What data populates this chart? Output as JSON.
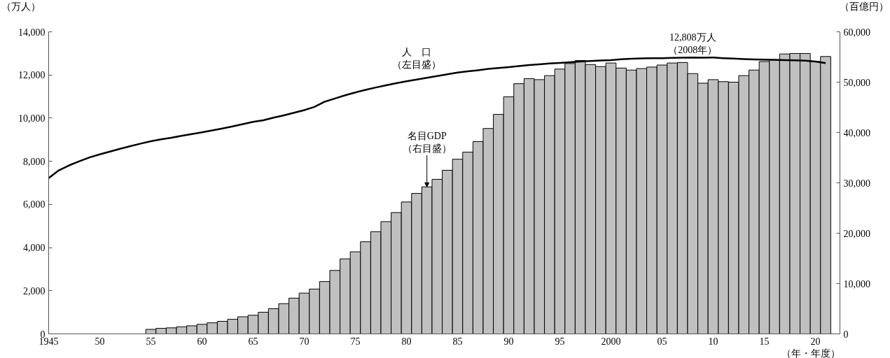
{
  "chart_data": {
    "type": "bar",
    "xlabel": "（年・年度）",
    "ylabel": "（万人）",
    "y2label": "（百億円）",
    "xlim": [
      1945,
      2022.4
    ],
    "xticks": [
      1945,
      {
        "value": 1950,
        "label": "50"
      },
      {
        "value": 1955,
        "label": "55"
      },
      {
        "value": 1960,
        "label": "60"
      },
      {
        "value": 1965,
        "label": "65"
      },
      {
        "value": 1970,
        "label": "70"
      },
      {
        "value": 1975,
        "label": "75"
      },
      {
        "value": 1980,
        "label": "80"
      },
      {
        "value": 1985,
        "label": "85"
      },
      {
        "value": 1990,
        "label": "90"
      },
      {
        "value": 1995,
        "label": "95"
      },
      2000,
      {
        "value": 2005,
        "label": "05"
      },
      {
        "value": 2010,
        "label": "10"
      },
      {
        "value": 2015,
        "label": "15"
      },
      {
        "value": 2020,
        "label": "20"
      }
    ],
    "ylim": [
      0,
      14000
    ],
    "yticks": [
      0,
      {
        "value": 2000,
        "label": "2,000"
      },
      {
        "value": 4000,
        "label": "4,000"
      },
      {
        "value": 6000,
        "label": "6,000"
      },
      {
        "value": 8000,
        "label": "8,000"
      },
      {
        "value": 10000,
        "label": "10,000"
      },
      {
        "value": 12000,
        "label": "12,000"
      },
      {
        "value": 14000,
        "label": "14,000"
      }
    ],
    "y2lim": [
      0,
      60000
    ],
    "y2ticks": [
      0,
      {
        "value": 10000,
        "label": "10,000"
      },
      {
        "value": 20000,
        "label": "20,000"
      },
      {
        "value": 30000,
        "label": "30,000"
      },
      {
        "value": 40000,
        "label": "40,000"
      },
      {
        "value": 50000,
        "label": "50,000"
      },
      {
        "value": 60000,
        "label": "60,000"
      }
    ],
    "grid": false,
    "series": [
      {
        "axis": "y2",
        "name": "名目GDP（右目盛）",
        "color": "#c0c0c0",
        "x": [
          1955,
          1956,
          1957,
          1958,
          1959,
          1960,
          1961,
          1962,
          1963,
          1964,
          1965,
          1966,
          1967,
          1968,
          1969,
          1970,
          1971,
          1972,
          1973,
          1974,
          1975,
          1976,
          1977,
          1978,
          1979,
          1980,
          1981,
          1982,
          1983,
          1984,
          1985,
          1986,
          1987,
          1988,
          1989,
          1990,
          1991,
          1992,
          1993,
          1994,
          1995,
          1996,
          1997,
          1998,
          1999,
          2000,
          2001,
          2002,
          2003,
          2004,
          2005,
          2006,
          2007,
          2008,
          2009,
          2010,
          2011,
          2012,
          2013,
          2014,
          2015,
          2016,
          2017,
          2018,
          2019,
          2020,
          2021
        ],
        "values": [
          900,
          1100,
          1200,
          1400,
          1600,
          1900,
          2200,
          2500,
          2900,
          3400,
          3700,
          4300,
          5000,
          6000,
          7100,
          8100,
          8900,
          10400,
          12600,
          14900,
          16300,
          18300,
          20300,
          22300,
          24100,
          26200,
          27900,
          29200,
          30700,
          32500,
          34700,
          36100,
          38200,
          40800,
          43600,
          47100,
          49700,
          50700,
          50500,
          51300,
          52600,
          53700,
          54300,
          53500,
          53100,
          53800,
          52800,
          52400,
          52700,
          53000,
          53400,
          53800,
          53900,
          51700,
          49800,
          50500,
          50100,
          50000,
          51300,
          52400,
          54100,
          54400,
          55600,
          55700,
          55700,
          54100,
          55100
        ]
      },
      {
        "type": "line",
        "axis": "y",
        "name": "人　口（左目盛）",
        "color": "#000000",
        "x": [
          1945,
          1946,
          1947,
          1948,
          1949,
          1950,
          1951,
          1952,
          1953,
          1954,
          1955,
          1956,
          1957,
          1958,
          1959,
          1960,
          1961,
          1962,
          1963,
          1964,
          1965,
          1966,
          1967,
          1968,
          1969,
          1970,
          1971,
          1972,
          1973,
          1974,
          1975,
          1976,
          1977,
          1978,
          1979,
          1980,
          1981,
          1982,
          1983,
          1984,
          1985,
          1986,
          1987,
          1988,
          1989,
          1990,
          1991,
          1992,
          1993,
          1994,
          1995,
          1996,
          1997,
          1998,
          1999,
          2000,
          2001,
          2002,
          2003,
          2004,
          2005,
          2006,
          2007,
          2008,
          2009,
          2010,
          2011,
          2012,
          2013,
          2014,
          2015,
          2016,
          2017,
          2018,
          2019,
          2020,
          2021
        ],
        "values": [
          7220,
          7580,
          7810,
          8000,
          8180,
          8320,
          8450,
          8580,
          8700,
          8820,
          8930,
          9020,
          9090,
          9180,
          9260,
          9340,
          9430,
          9520,
          9620,
          9720,
          9830,
          9900,
          10020,
          10130,
          10250,
          10370,
          10520,
          10760,
          10910,
          11060,
          11190,
          11310,
          11420,
          11520,
          11620,
          11710,
          11790,
          11870,
          11950,
          12030,
          12110,
          12170,
          12220,
          12280,
          12320,
          12360,
          12410,
          12460,
          12490,
          12530,
          12560,
          12590,
          12620,
          12650,
          12670,
          12690,
          12730,
          12750,
          12770,
          12780,
          12780,
          12790,
          12800,
          12808,
          12800,
          12810,
          12780,
          12760,
          12740,
          12720,
          12710,
          12700,
          12690,
          12680,
          12660,
          12620,
          12550
        ]
      }
    ],
    "annotations": [
      {
        "text": "12,808万人（2008年）",
        "x": 2008,
        "y": 12808
      }
    ]
  }
}
